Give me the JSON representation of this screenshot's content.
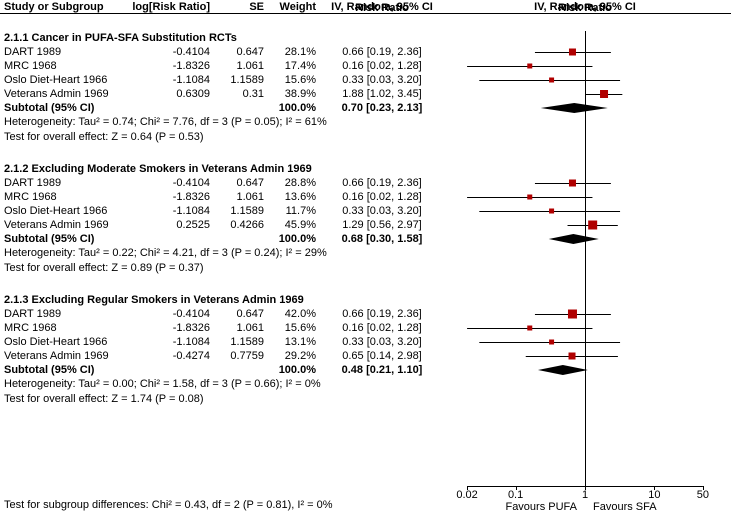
{
  "header": {
    "risk_ratio_left": "Risk Ratio",
    "risk_ratio_right": "Risk Ratio",
    "col_study": "Study or Subgroup",
    "col_logrr": "log[Risk Ratio]",
    "col_se": "SE",
    "col_weight": "Weight",
    "col_ci": "IV, Random, 95% CI",
    "plot_ci_label": "IV, Random, 95% CI"
  },
  "axis": {
    "tick_labels": [
      "0.02",
      "0.1",
      "1",
      "10",
      "50"
    ],
    "left_label": "Favours PUFA",
    "right_label": "Favours SFA"
  },
  "footer": "Test for subgroup differences: Chi² = 0.43, df = 2 (P = 0.81), I² = 0%",
  "colors": {
    "marker": "#b00000",
    "diamond": "#000000",
    "line": "#000000"
  },
  "chart_data": {
    "type": "forest",
    "x_scale": "log",
    "x_ticks": [
      0.02,
      0.1,
      1,
      10,
      50
    ],
    "subgroups": [
      {
        "title": "2.1.1 Cancer in PUFA-SFA Substitution RCTs",
        "studies": [
          {
            "name": "DART 1989",
            "log_rr": "-0.4104",
            "se": "0.647",
            "weight": "28.1%",
            "ci_text": "0.66 [0.19, 2.36]",
            "est": 0.66,
            "lo": 0.19,
            "hi": 2.36,
            "weight_pct": 28.1
          },
          {
            "name": "MRC 1968",
            "log_rr": "-1.8326",
            "se": "1.061",
            "weight": "17.4%",
            "ci_text": "0.16 [0.02, 1.28]",
            "est": 0.16,
            "lo": 0.02,
            "hi": 1.28,
            "weight_pct": 17.4
          },
          {
            "name": "Oslo Diet-Heart 1966",
            "log_rr": "-1.1084",
            "se": "1.1589",
            "weight": "15.6%",
            "ci_text": "0.33 [0.03, 3.20]",
            "est": 0.33,
            "lo": 0.03,
            "hi": 3.2,
            "weight_pct": 15.6
          },
          {
            "name": "Veterans Admin 1969",
            "log_rr": "0.6309",
            "se": "0.31",
            "weight": "38.9%",
            "ci_text": "1.88 [1.02, 3.45]",
            "est": 1.88,
            "lo": 1.02,
            "hi": 3.45,
            "weight_pct": 38.9
          }
        ],
        "subtotal": {
          "label": "Subtotal (95% CI)",
          "weight": "100.0%",
          "ci_text": "0.70 [0.23, 2.13]",
          "est": 0.7,
          "lo": 0.23,
          "hi": 2.13
        },
        "heterogeneity": "Heterogeneity: Tau² = 0.74; Chi² = 7.76, df = 3 (P = 0.05); I² = 61%",
        "overall_test": "Test for overall effect: Z = 0.64 (P = 0.53)"
      },
      {
        "title": "2.1.2 Excluding Moderate Smokers in Veterans Admin 1969",
        "studies": [
          {
            "name": "DART 1989",
            "log_rr": "-0.4104",
            "se": "0.647",
            "weight": "28.8%",
            "ci_text": "0.66 [0.19, 2.36]",
            "est": 0.66,
            "lo": 0.19,
            "hi": 2.36,
            "weight_pct": 28.8
          },
          {
            "name": "MRC 1968",
            "log_rr": "-1.8326",
            "se": "1.061",
            "weight": "13.6%",
            "ci_text": "0.16 [0.02, 1.28]",
            "est": 0.16,
            "lo": 0.02,
            "hi": 1.28,
            "weight_pct": 13.6
          },
          {
            "name": "Oslo Diet-Heart 1966",
            "log_rr": "-1.1084",
            "se": "1.1589",
            "weight": "11.7%",
            "ci_text": "0.33 [0.03, 3.20]",
            "est": 0.33,
            "lo": 0.03,
            "hi": 3.2,
            "weight_pct": 11.7
          },
          {
            "name": "Veterans Admin 1969",
            "log_rr": "0.2525",
            "se": "0.4266",
            "weight": "45.9%",
            "ci_text": "1.29 [0.56, 2.97]",
            "est": 1.29,
            "lo": 0.56,
            "hi": 2.97,
            "weight_pct": 45.9
          }
        ],
        "subtotal": {
          "label": "Subtotal (95% CI)",
          "weight": "100.0%",
          "ci_text": "0.68 [0.30, 1.58]",
          "est": 0.68,
          "lo": 0.3,
          "hi": 1.58
        },
        "heterogeneity": "Heterogeneity: Tau² = 0.22; Chi² = 4.21, df = 3 (P = 0.24); I² = 29%",
        "overall_test": "Test for overall effect: Z = 0.89 (P = 0.37)"
      },
      {
        "title": "2.1.3 Excluding Regular Smokers in Veterans Admin 1969",
        "studies": [
          {
            "name": "DART 1989",
            "log_rr": "-0.4104",
            "se": "0.647",
            "weight": "42.0%",
            "ci_text": "0.66 [0.19, 2.36]",
            "est": 0.66,
            "lo": 0.19,
            "hi": 2.36,
            "weight_pct": 42.0
          },
          {
            "name": "MRC 1968",
            "log_rr": "-1.8326",
            "se": "1.061",
            "weight": "15.6%",
            "ci_text": "0.16 [0.02, 1.28]",
            "est": 0.16,
            "lo": 0.02,
            "hi": 1.28,
            "weight_pct": 15.6
          },
          {
            "name": "Oslo Diet-Heart 1966",
            "log_rr": "-1.1084",
            "se": "1.1589",
            "weight": "13.1%",
            "ci_text": "0.33 [0.03, 3.20]",
            "est": 0.33,
            "lo": 0.03,
            "hi": 3.2,
            "weight_pct": 13.1
          },
          {
            "name": "Veterans Admin 1969",
            "log_rr": "-0.4274",
            "se": "0.7759",
            "weight": "29.2%",
            "ci_text": "0.65 [0.14, 2.98]",
            "est": 0.65,
            "lo": 0.14,
            "hi": 2.98,
            "weight_pct": 29.2
          }
        ],
        "subtotal": {
          "label": "Subtotal (95% CI)",
          "weight": "100.0%",
          "ci_text": "0.48 [0.21, 1.10]",
          "est": 0.48,
          "lo": 0.21,
          "hi": 1.1
        },
        "heterogeneity": "Heterogeneity: Tau² = 0.00; Chi² = 1.58, df = 3 (P = 0.66); I² = 0%",
        "overall_test": "Test for overall effect: Z = 1.74 (P = 0.08)"
      }
    ]
  }
}
